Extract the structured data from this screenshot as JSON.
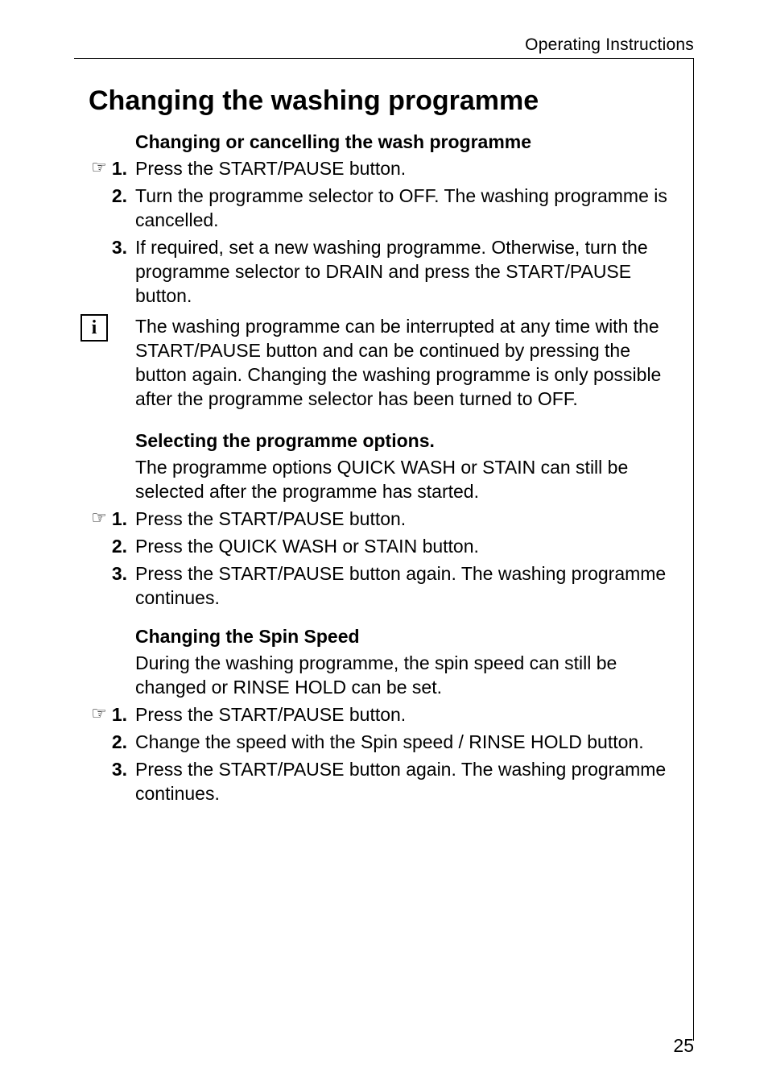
{
  "header": {
    "section_label": "Operating Instructions"
  },
  "title": "Changing the washing programme",
  "section1": {
    "heading": "Changing or cancelling the wash programme",
    "steps": [
      {
        "num": "1.",
        "hand": true,
        "text": "Press the START/PAUSE button."
      },
      {
        "num": "2.",
        "hand": false,
        "text": "Turn the programme selector to OFF. The washing programme is cancelled."
      },
      {
        "num": "3.",
        "hand": false,
        "text": "If required, set a new washing programme. Otherwise, turn the programme selector to DRAIN and press the START/PAUSE button."
      }
    ],
    "info": "The washing programme can be interrupted at any time with the START/PAUSE button and can be continued by pressing the button again. Changing the washing programme is only possible after the programme selector has been turned to OFF."
  },
  "section2": {
    "heading": "Selecting the programme options.",
    "intro": "The programme options QUICK WASH or STAIN can still be selected after the programme has started.",
    "steps": [
      {
        "num": "1.",
        "hand": true,
        "text": "Press the START/PAUSE button."
      },
      {
        "num": "2.",
        "hand": false,
        "text": "Press the QUICK WASH or STAIN button."
      },
      {
        "num": "3.",
        "hand": false,
        "text": "Press the START/PAUSE button again. The washing programme continues."
      }
    ]
  },
  "section3": {
    "heading": "Changing the Spin Speed",
    "intro": "During the washing programme, the spin speed can still be changed or RINSE HOLD can be set.",
    "steps": [
      {
        "num": "1.",
        "hand": true,
        "text": "Press the START/PAUSE button."
      },
      {
        "num": "2.",
        "hand": false,
        "text": "Change the speed with the Spin speed / RINSE HOLD button."
      },
      {
        "num": "3.",
        "hand": false,
        "text": "Press the START/PAUSE button again. The washing programme continues."
      }
    ]
  },
  "page_number": "25",
  "icons": {
    "hand_glyph": "☞",
    "info_glyph": "i"
  }
}
